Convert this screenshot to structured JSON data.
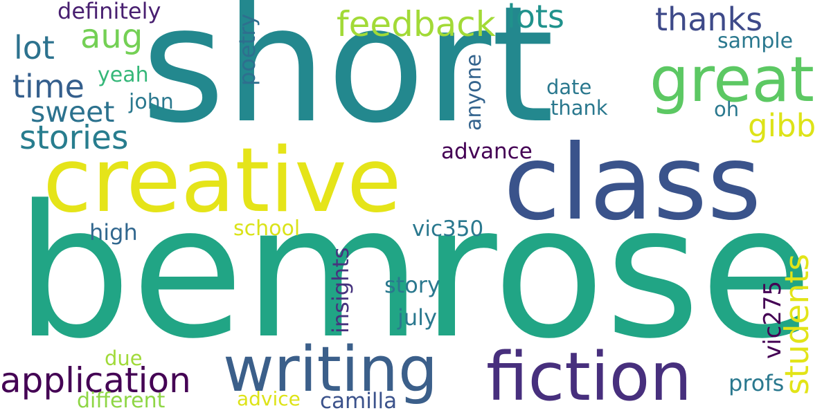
{
  "words": {
    "bemrose": {
      "text": "bemrose",
      "color": "#21a585"
    },
    "short": {
      "text": "short",
      "color": "#23888e"
    },
    "creative": {
      "text": "creative",
      "color": "#e5e419"
    },
    "class": {
      "text": "class",
      "color": "#3a538b"
    },
    "writing": {
      "text": "writing",
      "color": "#3b5f8a"
    },
    "fiction": {
      "text": "fiction",
      "color": "#472f7d"
    },
    "great": {
      "text": "great",
      "color": "#5cc863"
    },
    "application": {
      "text": "application",
      "color": "#440154"
    },
    "stories": {
      "text": "stories",
      "color": "#287d8e"
    },
    "students": {
      "text": "students",
      "color": "#e2e418"
    },
    "feedback": {
      "text": "feedback",
      "color": "#a2da37"
    },
    "thanks": {
      "text": "thanks",
      "color": "#3e4a89"
    },
    "lots": {
      "text": "lots",
      "color": "#20928c"
    },
    "aug": {
      "text": "aug",
      "color": "#74d055"
    },
    "lot": {
      "text": "lot",
      "color": "#2c728e"
    },
    "time": {
      "text": "time",
      "color": "#355f8d"
    },
    "sweet": {
      "text": "sweet",
      "color": "#2c728e"
    },
    "gibb": {
      "text": "gibb",
      "color": "#dde318"
    },
    "vic275": {
      "text": "vic275",
      "color": "#440154"
    },
    "insights": {
      "text": "insights",
      "color": "#46337e"
    },
    "definitely": {
      "text": "definitely",
      "color": "#481f70"
    },
    "poetry": {
      "text": "poetry",
      "color": "#2e6f8e"
    },
    "anyone": {
      "text": "anyone",
      "color": "#33638d"
    },
    "advance": {
      "text": "advance",
      "color": "#440154"
    },
    "vic350": {
      "text": "vic350",
      "color": "#2a788e"
    },
    "school": {
      "text": "school",
      "color": "#dae319"
    },
    "high": {
      "text": "high",
      "color": "#31678e"
    },
    "story": {
      "text": "story",
      "color": "#2a788e"
    },
    "july": {
      "text": "july",
      "color": "#2a788e"
    },
    "profs": {
      "text": "profs",
      "color": "#2a788e"
    },
    "camilla": {
      "text": "camilla",
      "color": "#3b528b"
    },
    "advice": {
      "text": "advice",
      "color": "#dde318"
    },
    "different": {
      "text": "different",
      "color": "#8ed645"
    },
    "due": {
      "text": "due",
      "color": "#a0da39"
    },
    "sample": {
      "text": "sample",
      "color": "#2a788e"
    },
    "date": {
      "text": "date",
      "color": "#2a788e"
    },
    "thank": {
      "text": "thank",
      "color": "#2a788e"
    },
    "oh": {
      "text": "oh",
      "color": "#2a788e"
    },
    "yeah": {
      "text": "yeah",
      "color": "#35b779"
    },
    "john": {
      "text": "john",
      "color": "#2a788e"
    }
  }
}
